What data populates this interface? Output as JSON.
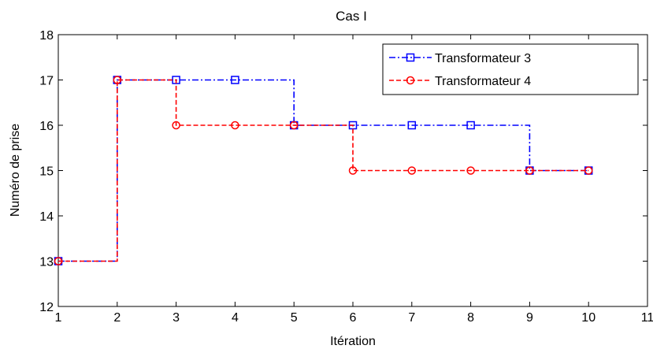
{
  "chart_data": {
    "type": "line",
    "title": "Cas I",
    "xlabel": "Itération",
    "ylabel": "Numéro de prise",
    "xlim": [
      1,
      11
    ],
    "ylim": [
      12,
      18
    ],
    "xticks": [
      1,
      2,
      3,
      4,
      5,
      6,
      7,
      8,
      9,
      10,
      11
    ],
    "yticks": [
      12,
      13,
      14,
      15,
      16,
      17,
      18
    ],
    "grid": false,
    "step": "post",
    "legend_position": "top-right",
    "series": [
      {
        "name": "Transformateur 3",
        "color": "#0000ff",
        "line_style": "dash-dot",
        "marker": "square",
        "x": [
          1,
          2,
          3,
          4,
          5,
          6,
          7,
          8,
          9,
          10
        ],
        "y": [
          13,
          17,
          17,
          17,
          16,
          16,
          16,
          16,
          15,
          15
        ]
      },
      {
        "name": "Transformateur 4",
        "color": "#ff0000",
        "line_style": "dashed",
        "marker": "circle",
        "x": [
          1,
          2,
          3,
          4,
          5,
          6,
          7,
          8,
          9,
          10
        ],
        "y": [
          13,
          17,
          16,
          16,
          16,
          15,
          15,
          15,
          15,
          15
        ]
      }
    ]
  }
}
